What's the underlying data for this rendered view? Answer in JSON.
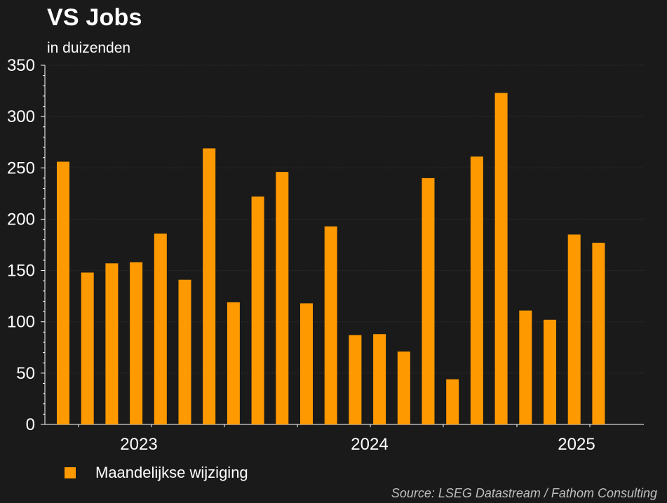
{
  "chart_data": {
    "type": "bar",
    "title": "VS Jobs",
    "subtitle": "in duizenden",
    "x_tick_labels": [
      "2023",
      "2024",
      "2025"
    ],
    "y_ticks": [
      0,
      50,
      100,
      150,
      200,
      250,
      300,
      350
    ],
    "ylim": [
      0,
      350
    ],
    "grid": true,
    "series": [
      {
        "name": "Maandelijkse wijziging",
        "color": "#ff9900",
        "values": [
          256,
          148,
          157,
          158,
          186,
          141,
          269,
          119,
          222,
          246,
          118,
          193,
          87,
          88,
          71,
          240,
          44,
          261,
          323,
          111,
          102,
          185,
          177
        ]
      }
    ],
    "legend_position": "bottom-left",
    "source": "Source: LSEG Datastream / Fathom Consulting"
  }
}
